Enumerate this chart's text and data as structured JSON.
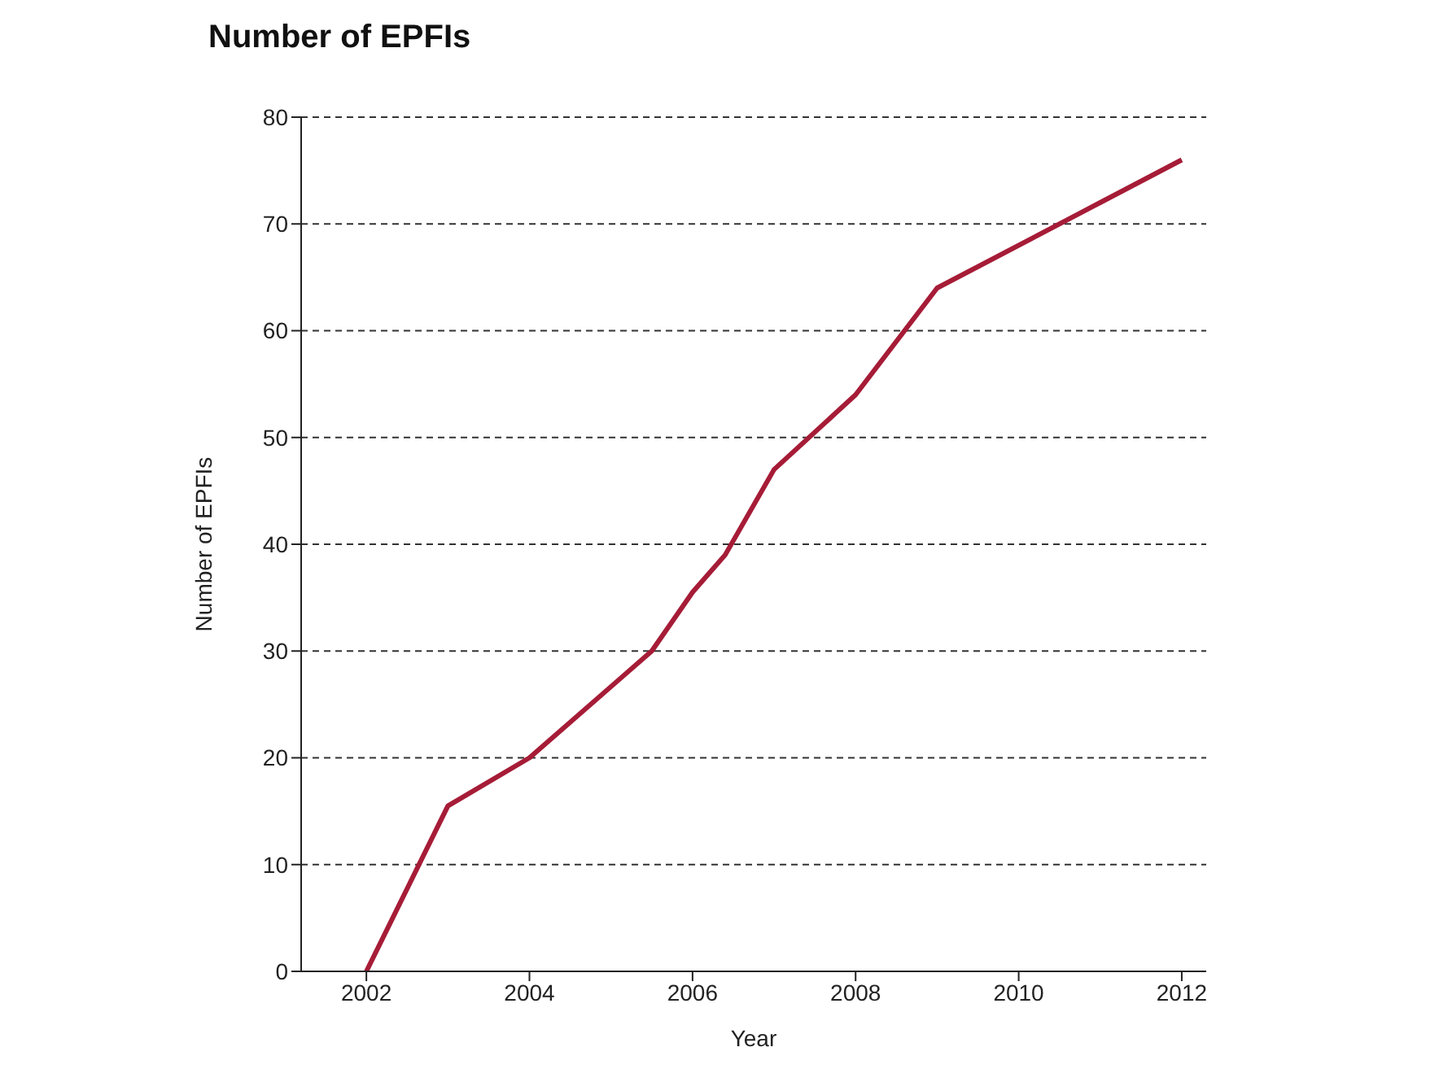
{
  "chart_data": {
    "type": "line",
    "title": "Number of EPFIs",
    "xlabel": "Year",
    "ylabel": "Number of EPFIs",
    "x": [
      2002,
      2003,
      2004,
      2005.5,
      2006,
      2006.4,
      2007,
      2008,
      2009,
      2011,
      2012
    ],
    "series": [
      {
        "color": "#a61c37",
        "values": [
          0,
          15.5,
          20,
          30,
          35.5,
          39,
          47,
          54,
          64,
          72,
          76
        ]
      }
    ],
    "xlim": [
      2001.2,
      2012.3
    ],
    "xticks": [
      2002,
      2004,
      2006,
      2008,
      2010,
      2012
    ],
    "ylim": [
      0,
      80
    ],
    "yticks": [
      0,
      10,
      20,
      30,
      40,
      50,
      60,
      70,
      80
    ],
    "grid": "y",
    "legend": false,
    "marker": "none",
    "line_style": "solid"
  }
}
